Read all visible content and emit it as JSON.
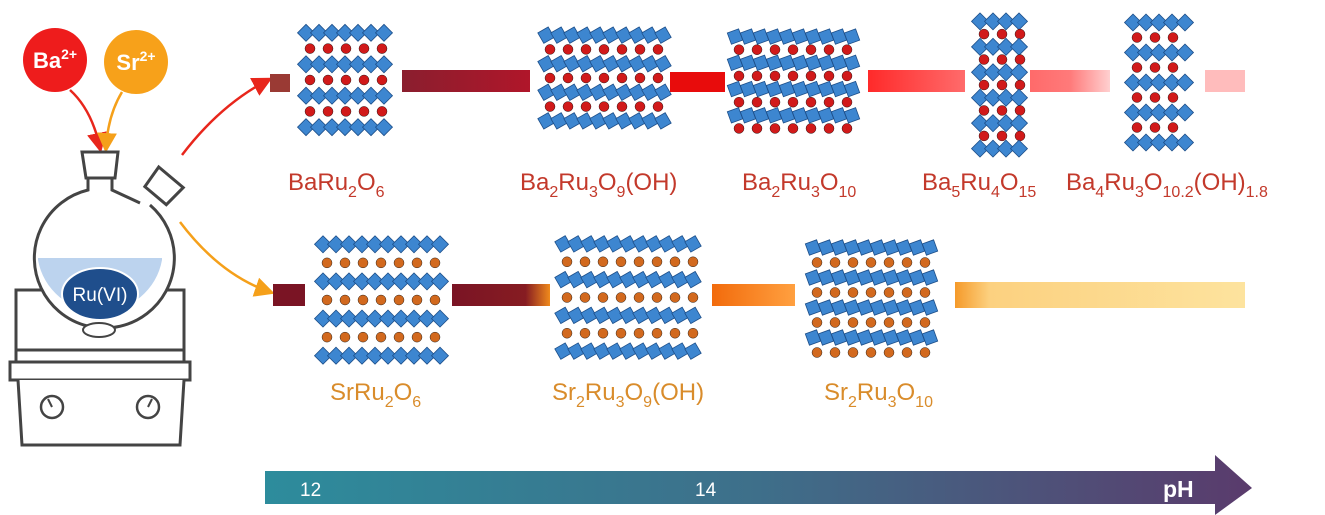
{
  "ions": [
    {
      "symbol": "Ba",
      "charge": "2+"
    },
    {
      "symbol": "Sr",
      "charge": "2+"
    }
  ],
  "flask_label": "Ru(VI)",
  "ba_phases": [
    {
      "parts": [
        {
          "text": "BaRu"
        },
        {
          "sub": "2"
        },
        {
          "text": "O"
        },
        {
          "sub": "6"
        }
      ]
    },
    {
      "parts": [
        {
          "text": "Ba"
        },
        {
          "sub": "2"
        },
        {
          "text": "Ru"
        },
        {
          "sub": "3"
        },
        {
          "text": "O"
        },
        {
          "sub": "9"
        },
        {
          "text": "(OH)"
        }
      ]
    },
    {
      "parts": [
        {
          "text": "Ba"
        },
        {
          "sub": "2"
        },
        {
          "text": "Ru"
        },
        {
          "sub": "3"
        },
        {
          "text": "O"
        },
        {
          "sub": "10"
        }
      ]
    },
    {
      "parts": [
        {
          "text": "Ba"
        },
        {
          "sub": "5"
        },
        {
          "text": "Ru"
        },
        {
          "sub": "4"
        },
        {
          "text": "O"
        },
        {
          "sub": "15"
        }
      ]
    },
    {
      "parts": [
        {
          "text": "Ba"
        },
        {
          "sub": "4"
        },
        {
          "text": "Ru"
        },
        {
          "sub": "3"
        },
        {
          "text": "O"
        },
        {
          "sub": "10.2"
        },
        {
          "text": "(OH)"
        },
        {
          "sub": "1.8"
        }
      ]
    }
  ],
  "sr_phases": [
    {
      "parts": [
        {
          "text": "SrRu"
        },
        {
          "sub": "2"
        },
        {
          "text": "O"
        },
        {
          "sub": "6"
        }
      ]
    },
    {
      "parts": [
        {
          "text": "Sr"
        },
        {
          "sub": "2"
        },
        {
          "text": "Ru"
        },
        {
          "sub": "3"
        },
        {
          "text": "O"
        },
        {
          "sub": "9"
        },
        {
          "text": "(OH)"
        }
      ]
    },
    {
      "parts": [
        {
          "text": "Sr"
        },
        {
          "sub": "2"
        },
        {
          "text": "Ru"
        },
        {
          "sub": "3"
        },
        {
          "text": "O"
        },
        {
          "sub": "10"
        }
      ]
    }
  ],
  "ph_axis": {
    "label": "pH",
    "ticks": [
      12,
      14
    ]
  }
}
